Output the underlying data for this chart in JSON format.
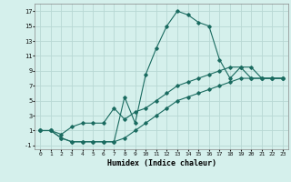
{
  "xlabel": "Humidex (Indice chaleur)",
  "bg_color": "#d5f0ec",
  "grid_color": "#b8d8d4",
  "line_color": "#1a6b60",
  "xlim": [
    -0.5,
    23.5
  ],
  "ylim": [
    -1.5,
    18
  ],
  "xticks": [
    0,
    1,
    2,
    3,
    4,
    5,
    6,
    7,
    8,
    9,
    10,
    11,
    12,
    13,
    14,
    15,
    16,
    17,
    18,
    19,
    20,
    21,
    22,
    23
  ],
  "yticks": [
    -1,
    1,
    3,
    5,
    7,
    9,
    11,
    13,
    15,
    17
  ],
  "line1_x": [
    0,
    1,
    2,
    3,
    4,
    5,
    6,
    7,
    8,
    9,
    10,
    11,
    12,
    13,
    14,
    15,
    16,
    17,
    18,
    19,
    20,
    21,
    22,
    23
  ],
  "line1_y": [
    1,
    1,
    0,
    -0.5,
    -0.5,
    -0.5,
    -0.5,
    -0.5,
    5.5,
    2,
    8.5,
    12,
    15,
    17,
    16.5,
    15.5,
    15,
    10.5,
    8,
    9.5,
    8,
    8,
    8,
    8
  ],
  "line2_x": [
    0,
    1,
    2,
    3,
    4,
    5,
    6,
    7,
    8,
    9,
    10,
    11,
    12,
    13,
    14,
    15,
    16,
    17,
    18,
    19,
    20,
    21,
    22,
    23
  ],
  "line2_y": [
    1,
    1,
    0.5,
    1.5,
    2,
    2,
    2,
    4,
    2.5,
    3.5,
    4,
    5,
    6,
    7,
    7.5,
    8,
    8.5,
    9,
    9.5,
    9.5,
    9.5,
    8,
    8,
    8
  ],
  "line3_x": [
    0,
    1,
    2,
    3,
    4,
    5,
    6,
    7,
    8,
    9,
    10,
    11,
    12,
    13,
    14,
    15,
    16,
    17,
    18,
    19,
    20,
    21,
    22,
    23
  ],
  "line3_y": [
    1,
    1,
    0,
    -0.5,
    -0.5,
    -0.5,
    -0.5,
    -0.5,
    0,
    1,
    2,
    3,
    4,
    5,
    5.5,
    6,
    6.5,
    7,
    7.5,
    8,
    8,
    8,
    8,
    8
  ]
}
